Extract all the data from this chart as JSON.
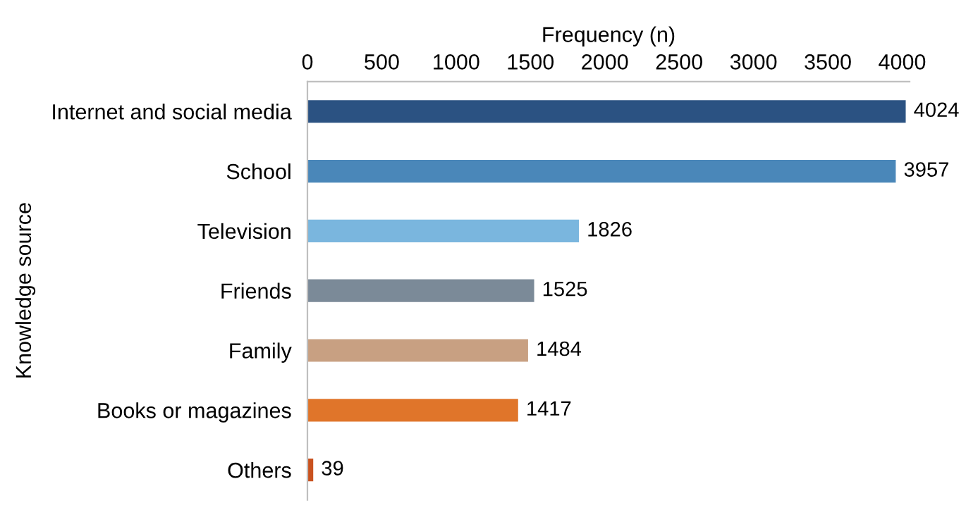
{
  "chart_data": {
    "type": "bar",
    "orientation": "horizontal",
    "xlabel": "Frequency (n)",
    "ylabel": "Knowledge source",
    "categories": [
      "Internet and social media",
      "School",
      "Television",
      "Friends",
      "Family",
      "Books or magazines",
      "Others"
    ],
    "values": [
      4024,
      3957,
      1826,
      1525,
      1484,
      1417,
      39
    ],
    "colors": [
      "#2b5282",
      "#4a87b9",
      "#7ab6de",
      "#7b8a98",
      "#c8a082",
      "#e0752a",
      "#c9521f"
    ],
    "xlim": [
      0,
      4050
    ],
    "xticks": [
      0,
      500,
      1000,
      1500,
      2000,
      2500,
      3000,
      3500,
      4000
    ],
    "data_labels": true,
    "grid": false,
    "legend": false
  }
}
